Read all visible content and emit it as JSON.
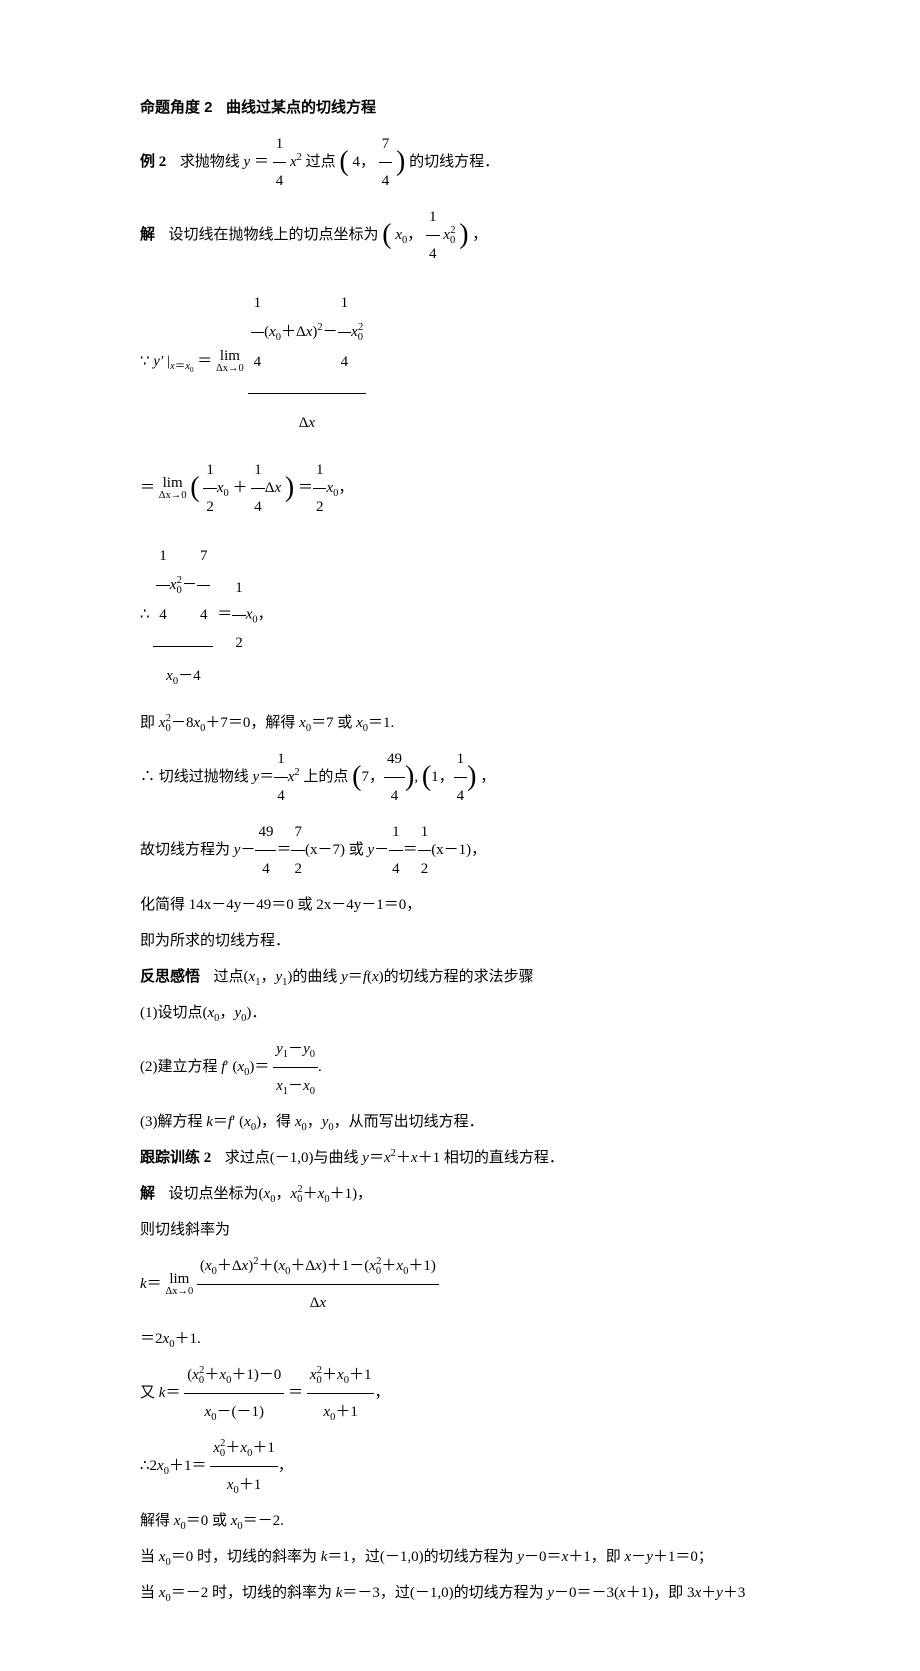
{
  "page": {
    "background": "#ffffff",
    "text_color": "#000000",
    "body_font": "SimSun",
    "math_font": "Times New Roman",
    "heading_font": "SimHei",
    "base_fontsize_pt": 11,
    "line_height": 2.4
  },
  "h1": {
    "label": "命题角度 2",
    "title": "曲线过某点的切线方程"
  },
  "ex2": {
    "label": "例 2",
    "stem_pre": "求抛物线 ",
    "eq_lhs": "y",
    "eq_eq": "＝",
    "frac14_num": "1",
    "frac14_den": "4",
    "xsq": "x",
    "sq": "2",
    "stem_mid": " 过点",
    "pt_a": "4",
    "pt_b_num": "7",
    "pt_b_den": "4",
    "stem_post": "的切线方程．"
  },
  "sol": {
    "label": "解",
    "s1_a": "设切线在抛物线上的切点坐标为",
    "pt_x": "x",
    "pt_sub": "0",
    "frac14_num": "1",
    "frac14_den": "4",
    "s1_b": "，",
    "s2_sym": "∵ ",
    "yprime": "y′",
    "bar": "|",
    "sub": "x＝x",
    "sub0": "0",
    "eq": "＝",
    "lim_top": "lim",
    "lim_bot": "Δx→0",
    "num_a": "(",
    "num_b": "＋Δ",
    "num_c": ")",
    "minus": "－",
    "den": "Δx",
    "s3_eq": "＝",
    "half_num": "1",
    "half_den": "2",
    "plus": "＋",
    "dx": "Δx",
    "s3_tail": "x",
    "s3_sub": "0",
    "s3_comma": "，",
    "s4_sym": "∴",
    "n7_num": "7",
    "n7_den": "4",
    "m4": "－4",
    "s5": "即 ",
    "s5_eq": "x",
    "s5_sq": "2",
    "s5_sub": "0",
    "s5_body": "－8x",
    "s5_t": "＋7＝0，解得 x",
    "s5_eq7": "＝7 或 x",
    "s5_eq1": "＝1.",
    "s6_sym": "∴",
    "s6_a": "切线过抛物线 ",
    "s6_b": " 上的点",
    "p7": "7",
    "p49n": "49",
    "p49d": "4",
    "p1": "1",
    "p14n": "1",
    "p14d": "4",
    "s6_c": "，",
    "s7_a": "故切线方程为 ",
    "y": "y",
    "n49n": "49",
    "n49d": "4",
    "n72n": "7",
    "n72d": "2",
    "xm7": "(x－7)",
    "or": "或 ",
    "n14n": "1",
    "n14d": "4",
    "n12n": "1",
    "n12d": "2",
    "xm1": "(x－1)，",
    "s8": "化简得 14x－4y－49＝0 或 2x－4y－1＝0，",
    "s9": "即为所求的切线方程．"
  },
  "ref": {
    "label": "反思感悟",
    "intro": "过点(x₁，y₁)的曲线 y＝f(x)的切线方程的求法步骤",
    "i1": "(1)设切点(x₀，y₀)．",
    "i2a": "(2)建立方程 f′ (x₀)＝",
    "i2_num_a": "y",
    "i2_sup1": "1",
    "i2_m": "－",
    "i2_num_b": "y",
    "i2_sup0": "0",
    "i2_den_a": "x",
    "i2_den_b": "x",
    "i2b": ".",
    "i3": "(3)解方程 k＝f′ (x₀)，得 x₀，y₀，从而写出切线方程．"
  },
  "tr2": {
    "label": "跟踪训练 2",
    "stem": "求过点(－1,0)与曲线 y＝x²＋x＋1 相切的直线方程．"
  },
  "sol2": {
    "label": "解",
    "s1": "设切点坐标为(x₀，x₀²＋x₀＋1)，",
    "s2": "则切线斜率为",
    "s3_k": "k＝",
    "s3_num": "(x₀＋Δx)²＋(x₀＋Δx)＋1－(x₀²＋x₀＋1)",
    "s3_den": "Δx",
    "s4": "＝2x₀＋1.",
    "s5a": "又 k＝",
    "s5_num1": "(x₀²＋x₀＋1)－0",
    "s5_den1": "x₀－(－1)",
    "s5_eq": "＝",
    "s5_num2": "x₀²＋x₀＋1",
    "s5_den2": "x₀＋1",
    "s5b": "，",
    "s6a": "∴2x₀＋1＝",
    "s6_num": "x₀²＋x₀＋1",
    "s6_den": "x₀＋1",
    "s6b": "，",
    "s7": "解得 x₀＝0 或 x₀＝－2.",
    "s8": "当 x₀＝0 时，切线的斜率为 k＝1，过(－1,0)的切线方程为 y－0＝x＋1，即 x－y＋1＝0；",
    "s9": "当 x₀＝－2 时，切线的斜率为 k＝－3，过(－1,0)的切线方程为 y－0＝－3(x＋1)，即 3x＋y＋3"
  }
}
